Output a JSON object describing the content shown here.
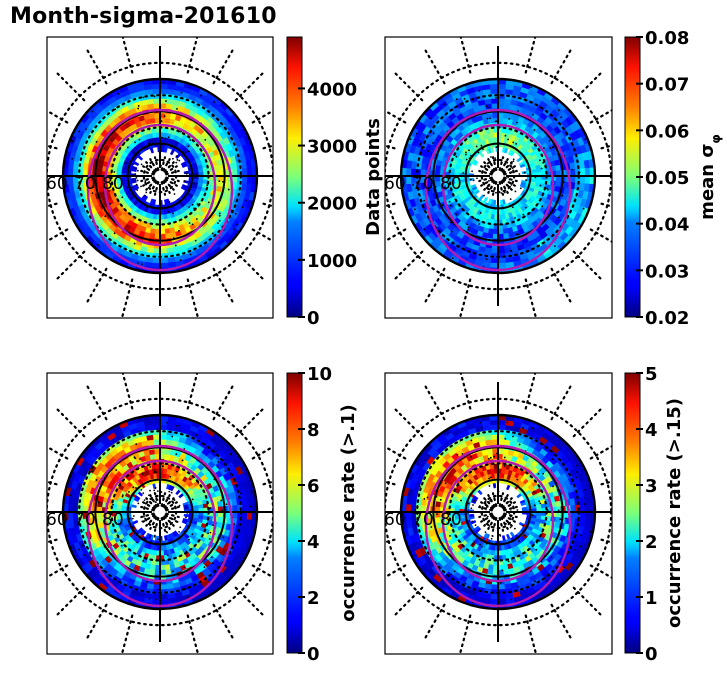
{
  "figure": {
    "title": "Month-sigma-201610"
  },
  "chart_data": [
    {
      "type": "heatmap",
      "projection": "polar (magnetic latitude / MLT)",
      "panel": "top-left",
      "title": "Month-sigma-201610",
      "colorbar": {
        "label": "Data points",
        "range": [
          0,
          4900
        ],
        "ticks": [
          0,
          1000,
          2000,
          3000,
          4000
        ],
        "tick_labels": [
          "0",
          "1000",
          "2000",
          "3000",
          "4000"
        ],
        "colormap": "jet"
      },
      "latitude_labels": [
        "60",
        "70",
        "80"
      ],
      "latitude_circles": [
        60,
        70,
        80
      ],
      "description": "Ring of high counts (2000-4500) between ~65-75 deg, low (<1000) near the pole and at the outer edge",
      "pattern": "data_points"
    },
    {
      "type": "heatmap",
      "projection": "polar (magnetic latitude / MLT)",
      "panel": "top-right",
      "colorbar": {
        "label": "mean σ_φ",
        "range": [
          0.02,
          0.08
        ],
        "ticks": [
          0.02,
          0.03,
          0.04,
          0.05,
          0.06,
          0.07,
          0.08
        ],
        "tick_labels": [
          "0.02",
          "0.03",
          "0.04",
          "0.05",
          "0.06",
          "0.07",
          "0.08"
        ],
        "colormap": "jet"
      },
      "latitude_labels": [
        "60",
        "70",
        "80"
      ],
      "latitude_circles": [
        60,
        70,
        80
      ],
      "description": "Mostly 0.02-0.035, elevated 0.045-0.065 in the dayside/noon auroral region near 75-80 deg",
      "pattern": "mean_sigma"
    },
    {
      "type": "heatmap",
      "projection": "polar (magnetic latitude / MLT)",
      "panel": "bottom-left",
      "colorbar": {
        "label": "occurrence rate (>.1)",
        "range": [
          0,
          10
        ],
        "ticks": [
          0,
          2,
          4,
          6,
          8,
          10
        ],
        "tick_labels": [
          "0",
          "2",
          "4",
          "6",
          "8",
          "10"
        ],
        "colormap": "jet"
      },
      "latitude_labels": [
        "60",
        "70",
        "80"
      ],
      "latitude_circles": [
        60,
        70,
        80
      ],
      "description": "Peaks (8-10) near the cusp around 75-80 deg and on the dusk/evening side, low elsewhere",
      "pattern": "occ1"
    },
    {
      "type": "heatmap",
      "projection": "polar (magnetic latitude / MLT)",
      "panel": "bottom-right",
      "colorbar": {
        "label": "occurrence rate (>.15)",
        "range": [
          0,
          5
        ],
        "ticks": [
          0,
          1,
          2,
          3,
          4,
          5
        ],
        "tick_labels": [
          "0",
          "1",
          "2",
          "3",
          "4",
          "5"
        ],
        "colormap": "jet"
      },
      "latitude_labels": [
        "60",
        "70",
        "80"
      ],
      "latitude_circles": [
        60,
        70,
        80
      ],
      "description": "Similar to >.1 occurrence pattern at lower scale, peaks of 3-5 in cusp and evening sector",
      "pattern": "occ2"
    }
  ],
  "overlays": {
    "auroral_oval_color": "#b31ab3",
    "grid_color": "#000000"
  }
}
